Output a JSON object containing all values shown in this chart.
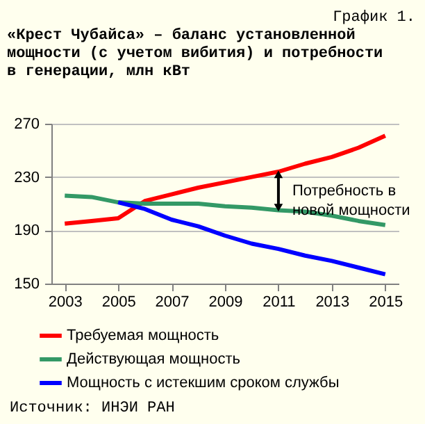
{
  "chart_data": {
    "type": "line",
    "title": "«Крест Чубайса» – баланс установленной мощности (с учетом вибития) и потребности в генерации, млн кВт",
    "annotations": [
      "График 1.",
      {
        "text": "Потребность в новой мощности",
        "x": 2011,
        "y": 234
      },
      "Источник: ИНЭИ РАН"
    ],
    "x": [
      2003,
      2004,
      2005,
      2006,
      2007,
      2008,
      2009,
      2010,
      2011,
      2012,
      2013,
      2014,
      2015
    ],
    "series": [
      {
        "name": "Требуемая мощность",
        "color": "#ff0000",
        "values": [
          195,
          197,
          199,
          212,
          217,
          222,
          226,
          230,
          234,
          240,
          245,
          252,
          261
        ]
      },
      {
        "name": "Действующая мощность",
        "color": "#339966",
        "values": [
          216,
          215,
          211,
          210,
          210,
          210,
          208,
          207,
          205,
          204,
          201,
          197,
          194
        ]
      },
      {
        "name": "Мощность с истекшим сроком службы",
        "color": "#0000ff",
        "values": [
          null,
          null,
          211,
          206,
          198,
          193,
          186,
          180,
          176,
          171,
          167,
          162,
          157
        ]
      }
    ],
    "xlim": [
      2002.5,
      2015.5
    ],
    "xticks": [
      2003,
      2005,
      2007,
      2009,
      2011,
      2013,
      2015
    ],
    "ylim": [
      150,
      270
    ],
    "yticks": [
      150,
      190,
      230,
      270
    ],
    "grid": "y",
    "legend": "bottom",
    "line_style": "solid",
    "marker": "none"
  }
}
